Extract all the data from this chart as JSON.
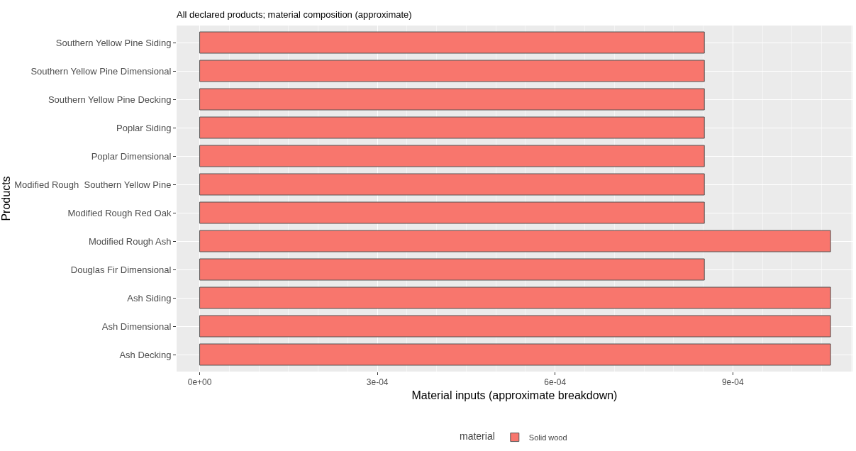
{
  "chart_data": {
    "type": "bar",
    "orientation": "horizontal",
    "title": "All declared products; material composition (approximate)",
    "xlabel": "Material inputs (approximate breakdown)",
    "ylabel": "Products",
    "legend_title": "material",
    "categories": [
      "Southern Yellow Pine Siding",
      "Southern Yellow Pine Dimensional",
      "Southern Yellow Pine Decking",
      "Poplar Siding",
      "Poplar Dimensional",
      "Modified Rough  Southern Yellow Pine",
      "Modified Rough Red Oak",
      "Modified Rough Ash",
      "Douglas Fir Dimensional",
      "Ash Siding",
      "Ash Dimensional",
      "Ash Decking"
    ],
    "series": [
      {
        "name": "Solid wood",
        "color": "#f8766d",
        "values": [
          0.000852,
          0.000852,
          0.000852,
          0.000852,
          0.000852,
          0.000852,
          0.000852,
          0.001065,
          0.000852,
          0.001065,
          0.001065,
          0.001065
        ]
      }
    ],
    "xlim": [
      -3.9e-05,
      0.001102
    ],
    "xticks": [
      {
        "value": 0,
        "label": "0e+00"
      },
      {
        "value": 0.0003,
        "label": "3e-04"
      },
      {
        "value": 0.0006,
        "label": "6e-04"
      },
      {
        "value": 0.0009,
        "label": "9e-04"
      }
    ],
    "grid": true,
    "legend": "bottom"
  }
}
